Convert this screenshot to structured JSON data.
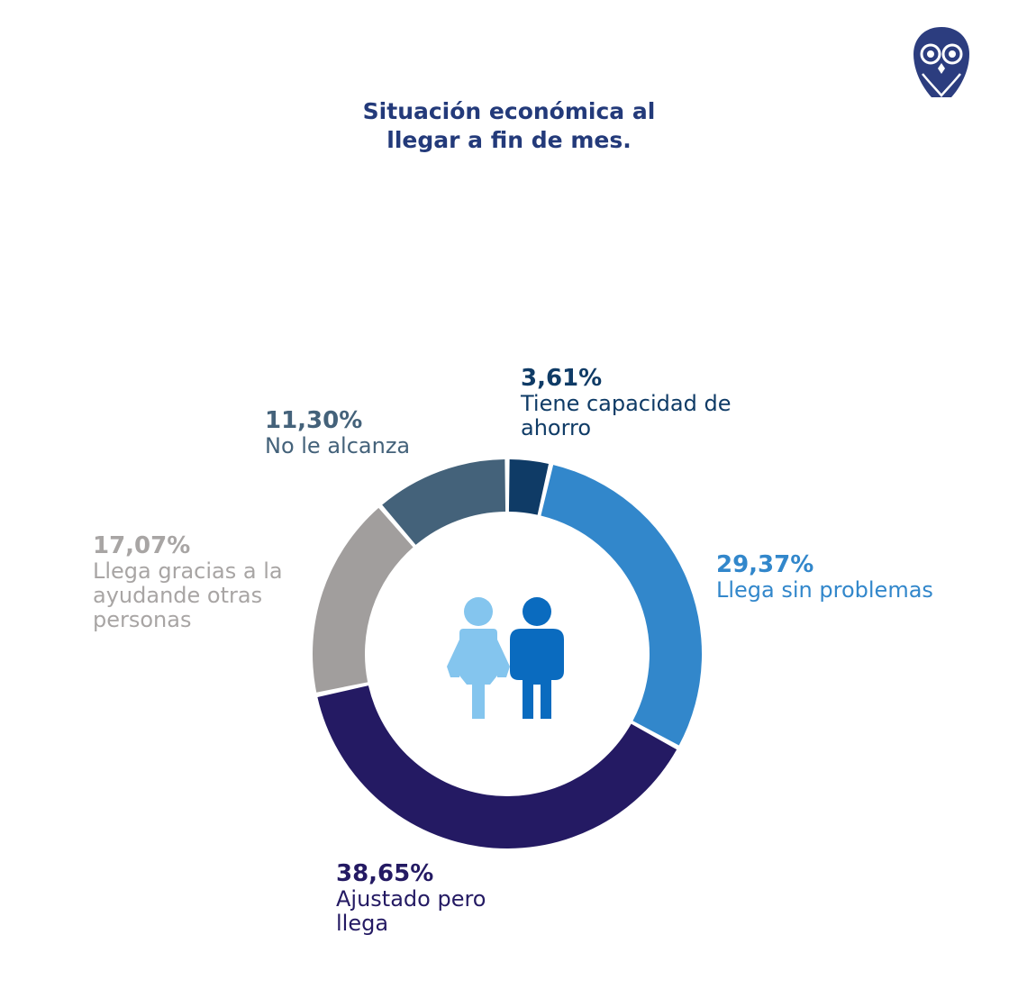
{
  "title_lines": [
    "Situación económica al",
    "llegar a fin de mes."
  ],
  "logo": {
    "icon": "owl-icon",
    "color": "#2c3d7f"
  },
  "center_icon": {
    "name": "couple-icon",
    "woman_color": "#84c5ee",
    "man_color": "#0a6bbf"
  },
  "chart_data": {
    "type": "pie",
    "style": "donut",
    "title": "Situación económica al llegar a fin de mes.",
    "slices": [
      {
        "value_label": "3,61%",
        "value": 3.61,
        "label": "Tiene capacidad de ahorro",
        "color": "#0f3b66"
      },
      {
        "value_label": "29,37%",
        "value": 29.37,
        "label": "Llega sin problemas",
        "color": "#3287cb"
      },
      {
        "value_label": "38,65%",
        "value": 38.65,
        "label": "Ajustado pero llega",
        "color": "#241a63"
      },
      {
        "value_label": "17,07%",
        "value": 17.07,
        "label": "Llega gracias a la ayudande otras personas",
        "color": "#a19e9d"
      },
      {
        "value_label": "11,30%",
        "value": 11.3,
        "label": "No le alcanza",
        "color": "#44627a"
      }
    ]
  }
}
